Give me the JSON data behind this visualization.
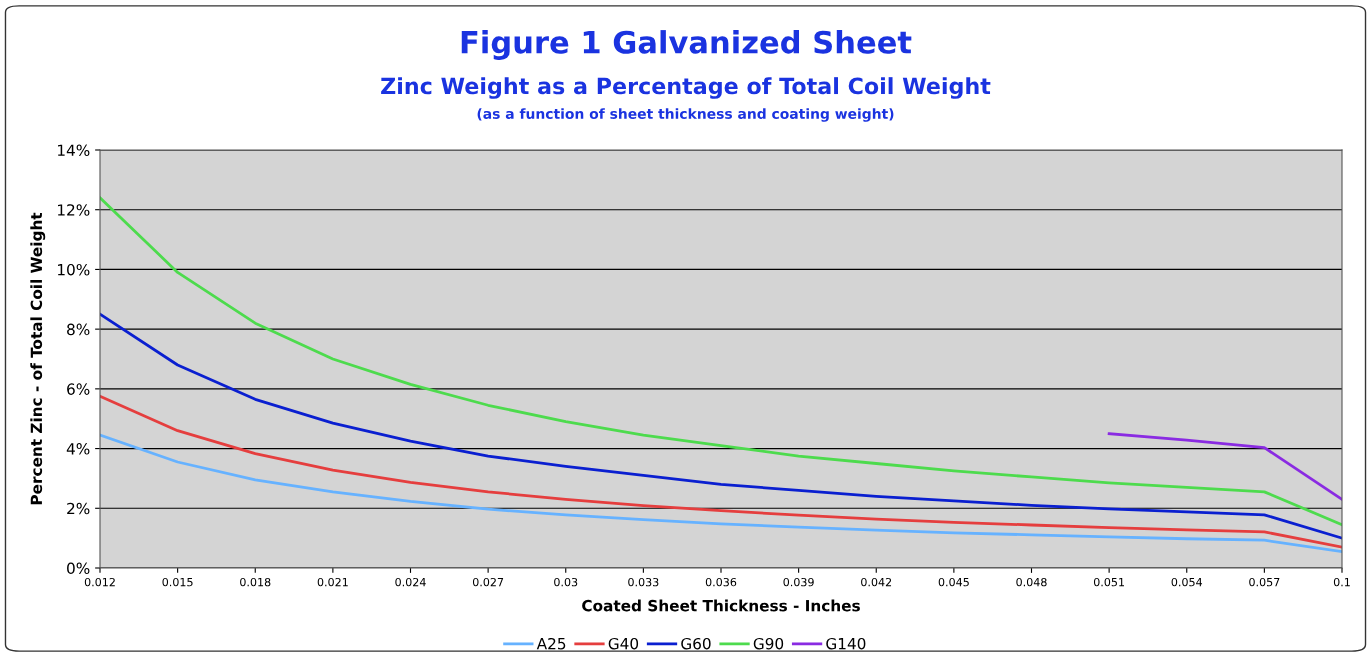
{
  "chart_data": {
    "type": "line",
    "title": "Figure 1 Galvanized Sheet",
    "subtitle": "Zinc Weight as a Percentage of Total Coil Weight",
    "annotations": [
      "(as a function of sheet thickness and coating weight)"
    ],
    "xlabel": "Coated Sheet Thickness - Inches",
    "ylabel": "Percent Zinc - of Total Coil Weight",
    "categories": [
      "0.012",
      "0.015",
      "0.018",
      "0.021",
      "0.024",
      "0.027",
      "0.03",
      "0.033",
      "0.036",
      "0.039",
      "0.042",
      "0.045",
      "0.048",
      "0.051",
      "0.054",
      "0.057",
      "0.1"
    ],
    "series": [
      {
        "name": "A25",
        "color": "#66b2ff",
        "values": [
          4.45,
          3.55,
          2.95,
          2.55,
          2.23,
          1.97,
          1.78,
          1.62,
          1.48,
          1.37,
          1.27,
          1.18,
          1.11,
          1.04,
          0.98,
          0.93,
          0.55
        ]
      },
      {
        "name": "G40",
        "color": "#e53e3e",
        "values": [
          5.75,
          4.6,
          3.83,
          3.28,
          2.87,
          2.55,
          2.3,
          2.09,
          1.92,
          1.77,
          1.64,
          1.53,
          1.44,
          1.35,
          1.28,
          1.21,
          0.7
        ]
      },
      {
        "name": "G60",
        "color": "#0a1fd0",
        "values": [
          8.5,
          6.8,
          5.65,
          4.85,
          4.25,
          3.75,
          3.4,
          3.1,
          2.8,
          2.6,
          2.4,
          2.25,
          2.1,
          1.98,
          1.88,
          1.78,
          1.0
        ]
      },
      {
        "name": "G90",
        "color": "#4ddb4d",
        "values": [
          12.4,
          9.9,
          8.2,
          7.0,
          6.15,
          5.45,
          4.9,
          4.45,
          4.1,
          3.75,
          3.5,
          3.25,
          3.05,
          2.85,
          2.7,
          2.55,
          1.45
        ]
      },
      {
        "name": "G140",
        "color": "#8a2be2",
        "values": [
          null,
          null,
          null,
          null,
          null,
          null,
          null,
          null,
          null,
          null,
          null,
          null,
          null,
          4.5,
          4.28,
          4.03,
          2.3
        ]
      }
    ],
    "ylim": [
      0,
      14
    ],
    "yticks": [
      {
        "value": 0,
        "label": "0%"
      },
      {
        "value": 2,
        "label": "2%"
      },
      {
        "value": 4,
        "label": "4%"
      },
      {
        "value": 6,
        "label": "6%"
      },
      {
        "value": 8,
        "label": "8%"
      },
      {
        "value": 10,
        "label": "10%"
      },
      {
        "value": 12,
        "label": "12%"
      },
      {
        "value": 14,
        "label": "14%"
      }
    ],
    "grid": "y",
    "legend": "bottom",
    "marker": "none",
    "line_style": "solid"
  }
}
